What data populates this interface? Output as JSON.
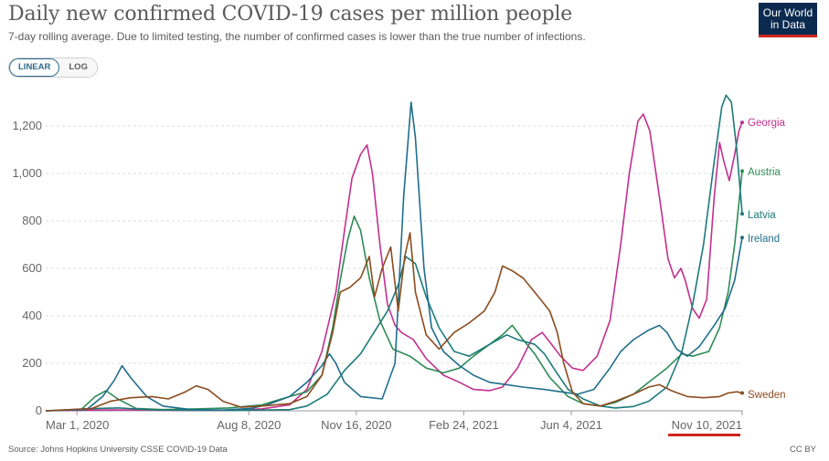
{
  "header": {
    "title": "Daily new confirmed COVID-19 cases per million people",
    "subtitle": "7-day rolling average. Due to limited testing, the number of confirmed cases is lower than the true number of infections.",
    "logo_line1": "Our World",
    "logo_line2": "in Data"
  },
  "controls": {
    "linear_label": "LINEAR",
    "log_label": "LOG",
    "active_scale": "linear"
  },
  "footer": {
    "source": "Source: Johns Hopkins University CSSE COVID-19 Data",
    "license": "CC BY"
  },
  "colors": {
    "accent": "#ce261e",
    "logo_bg": "#0b2a4f",
    "toggle_active": "#2c6a8e"
  },
  "chart_data": {
    "type": "line",
    "title": "Daily new confirmed COVID-19 cases per million people",
    "xlabel": "",
    "ylabel": "",
    "x_range": [
      "2020-02-01",
      "2021-11-10"
    ],
    "ylim": [
      0,
      1300
    ],
    "y_ticks": [
      0,
      200,
      400,
      600,
      800,
      1000,
      1200
    ],
    "y_tick_labels": [
      "0",
      "200",
      "400",
      "600",
      "800",
      "1,000",
      "1,200"
    ],
    "x_ticks": [
      "2020-03-01",
      "2020-08-08",
      "2020-11-16",
      "2021-02-24",
      "2021-06-04",
      "2021-11-10"
    ],
    "x_tick_labels": [
      "Mar 1, 2020",
      "Aug 8, 2020",
      "Nov 16, 2020",
      "Feb 24, 2021",
      "Jun 4, 2021",
      "Nov 10, 2021"
    ],
    "grid": "horizontal dashed",
    "legend": "right, labels at line ends",
    "series": [
      {
        "name": "Georgia",
        "color": "#c2308e",
        "points": [
          [
            "2020-02-01",
            0
          ],
          [
            "2020-03-20",
            3
          ],
          [
            "2020-04-20",
            4
          ],
          [
            "2020-06-01",
            2
          ],
          [
            "2020-07-15",
            2
          ],
          [
            "2020-08-20",
            8
          ],
          [
            "2020-09-15",
            25
          ],
          [
            "2020-10-01",
            90
          ],
          [
            "2020-10-15",
            250
          ],
          [
            "2020-10-28",
            500
          ],
          [
            "2020-11-05",
            760
          ],
          [
            "2020-11-12",
            980
          ],
          [
            "2020-11-20",
            1080
          ],
          [
            "2020-11-26",
            1120
          ],
          [
            "2020-12-01",
            1000
          ],
          [
            "2020-12-08",
            700
          ],
          [
            "2020-12-15",
            450
          ],
          [
            "2020-12-22",
            360
          ],
          [
            "2020-12-28",
            330
          ],
          [
            "2021-01-08",
            300
          ],
          [
            "2021-01-20",
            220
          ],
          [
            "2021-02-05",
            150
          ],
          [
            "2021-02-20",
            120
          ],
          [
            "2021-03-05",
            90
          ],
          [
            "2021-03-20",
            85
          ],
          [
            "2021-04-01",
            100
          ],
          [
            "2021-04-15",
            180
          ],
          [
            "2021-04-28",
            300
          ],
          [
            "2021-05-08",
            330
          ],
          [
            "2021-05-15",
            290
          ],
          [
            "2021-05-25",
            230
          ],
          [
            "2021-06-05",
            180
          ],
          [
            "2021-06-15",
            170
          ],
          [
            "2021-06-28",
            230
          ],
          [
            "2021-07-10",
            380
          ],
          [
            "2021-07-20",
            700
          ],
          [
            "2021-07-28",
            1000
          ],
          [
            "2021-08-05",
            1220
          ],
          [
            "2021-08-10",
            1250
          ],
          [
            "2021-08-16",
            1180
          ],
          [
            "2021-08-25",
            900
          ],
          [
            "2021-09-02",
            640
          ],
          [
            "2021-09-08",
            560
          ],
          [
            "2021-09-14",
            600
          ],
          [
            "2021-09-18",
            550
          ],
          [
            "2021-09-25",
            430
          ],
          [
            "2021-10-01",
            390
          ],
          [
            "2021-10-08",
            470
          ],
          [
            "2021-10-15",
            900
          ],
          [
            "2021-10-20",
            1130
          ],
          [
            "2021-10-24",
            1050
          ],
          [
            "2021-10-29",
            970
          ],
          [
            "2021-11-03",
            1080
          ],
          [
            "2021-11-07",
            1180
          ],
          [
            "2021-11-10",
            1215
          ]
        ]
      },
      {
        "name": "Austria",
        "color": "#2e8b57",
        "points": [
          [
            "2020-02-01",
            0
          ],
          [
            "2020-03-05",
            5
          ],
          [
            "2020-03-18",
            60
          ],
          [
            "2020-03-28",
            85
          ],
          [
            "2020-04-08",
            50
          ],
          [
            "2020-04-25",
            10
          ],
          [
            "2020-05-20",
            5
          ],
          [
            "2020-06-20",
            8
          ],
          [
            "2020-07-20",
            12
          ],
          [
            "2020-08-20",
            25
          ],
          [
            "2020-09-15",
            60
          ],
          [
            "2020-10-01",
            80
          ],
          [
            "2020-10-15",
            150
          ],
          [
            "2020-10-25",
            350
          ],
          [
            "2020-11-01",
            550
          ],
          [
            "2020-11-08",
            720
          ],
          [
            "2020-11-14",
            820
          ],
          [
            "2020-11-20",
            760
          ],
          [
            "2020-11-28",
            560
          ],
          [
            "2020-12-08",
            380
          ],
          [
            "2020-12-20",
            260
          ],
          [
            "2021-01-05",
            230
          ],
          [
            "2021-01-20",
            180
          ],
          [
            "2021-02-05",
            160
          ],
          [
            "2021-02-20",
            180
          ],
          [
            "2021-03-05",
            230
          ],
          [
            "2021-03-20",
            280
          ],
          [
            "2021-04-01",
            320
          ],
          [
            "2021-04-10",
            360
          ],
          [
            "2021-04-20",
            300
          ],
          [
            "2021-05-01",
            240
          ],
          [
            "2021-05-15",
            140
          ],
          [
            "2021-06-01",
            60
          ],
          [
            "2021-06-15",
            30
          ],
          [
            "2021-07-01",
            20
          ],
          [
            "2021-07-15",
            35
          ],
          [
            "2021-08-01",
            70
          ],
          [
            "2021-08-15",
            120
          ],
          [
            "2021-09-01",
            180
          ],
          [
            "2021-09-15",
            240
          ],
          [
            "2021-09-25",
            230
          ],
          [
            "2021-10-10",
            250
          ],
          [
            "2021-10-20",
            350
          ],
          [
            "2021-10-28",
            500
          ],
          [
            "2021-11-03",
            700
          ],
          [
            "2021-11-10",
            1010
          ]
        ]
      },
      {
        "name": "Latvia",
        "color": "#1d7a7a",
        "points": [
          [
            "2020-02-01",
            0
          ],
          [
            "2020-03-20",
            10
          ],
          [
            "2020-04-10",
            12
          ],
          [
            "2020-05-10",
            4
          ],
          [
            "2020-06-15",
            2
          ],
          [
            "2020-07-20",
            2
          ],
          [
            "2020-08-20",
            3
          ],
          [
            "2020-09-15",
            5
          ],
          [
            "2020-10-01",
            20
          ],
          [
            "2020-10-20",
            70
          ],
          [
            "2020-11-05",
            170
          ],
          [
            "2020-11-20",
            240
          ],
          [
            "2020-12-01",
            320
          ],
          [
            "2020-12-15",
            420
          ],
          [
            "2020-12-25",
            530
          ],
          [
            "2021-01-01",
            650
          ],
          [
            "2021-01-10",
            620
          ],
          [
            "2021-01-20",
            480
          ],
          [
            "2021-02-01",
            350
          ],
          [
            "2021-02-15",
            250
          ],
          [
            "2021-03-01",
            230
          ],
          [
            "2021-03-20",
            280
          ],
          [
            "2021-04-05",
            320
          ],
          [
            "2021-04-15",
            300
          ],
          [
            "2021-05-01",
            280
          ],
          [
            "2021-05-10",
            240
          ],
          [
            "2021-05-20",
            170
          ],
          [
            "2021-06-01",
            90
          ],
          [
            "2021-06-15",
            50
          ],
          [
            "2021-07-01",
            20
          ],
          [
            "2021-07-15",
            12
          ],
          [
            "2021-08-01",
            18
          ],
          [
            "2021-08-15",
            40
          ],
          [
            "2021-09-01",
            100
          ],
          [
            "2021-09-15",
            250
          ],
          [
            "2021-09-25",
            450
          ],
          [
            "2021-10-05",
            700
          ],
          [
            "2021-10-15",
            1050
          ],
          [
            "2021-10-22",
            1280
          ],
          [
            "2021-10-26",
            1330
          ],
          [
            "2021-10-31",
            1300
          ],
          [
            "2021-11-05",
            1100
          ],
          [
            "2021-11-10",
            830
          ]
        ]
      },
      {
        "name": "Ireland",
        "color": "#1f6e8c",
        "points": [
          [
            "2020-02-01",
            0
          ],
          [
            "2020-03-10",
            5
          ],
          [
            "2020-03-25",
            60
          ],
          [
            "2020-04-05",
            130
          ],
          [
            "2020-04-12",
            190
          ],
          [
            "2020-04-20",
            140
          ],
          [
            "2020-05-05",
            60
          ],
          [
            "2020-05-20",
            20
          ],
          [
            "2020-06-15",
            5
          ],
          [
            "2020-07-15",
            3
          ],
          [
            "2020-08-10",
            10
          ],
          [
            "2020-08-25",
            25
          ],
          [
            "2020-09-15",
            60
          ],
          [
            "2020-10-01",
            120
          ],
          [
            "2020-10-15",
            190
          ],
          [
            "2020-10-22",
            240
          ],
          [
            "2020-10-28",
            200
          ],
          [
            "2020-11-05",
            120
          ],
          [
            "2020-11-20",
            60
          ],
          [
            "2020-12-10",
            50
          ],
          [
            "2020-12-22",
            200
          ],
          [
            "2020-12-30",
            900
          ],
          [
            "2021-01-06",
            1300
          ],
          [
            "2021-01-10",
            1150
          ],
          [
            "2021-01-18",
            600
          ],
          [
            "2021-01-25",
            350
          ],
          [
            "2021-02-05",
            250
          ],
          [
            "2021-02-20",
            190
          ],
          [
            "2021-03-05",
            150
          ],
          [
            "2021-03-20",
            120
          ],
          [
            "2021-04-05",
            110
          ],
          [
            "2021-04-20",
            100
          ],
          [
            "2021-05-10",
            90
          ],
          [
            "2021-05-25",
            80
          ],
          [
            "2021-06-10",
            70
          ],
          [
            "2021-06-25",
            90
          ],
          [
            "2021-07-10",
            180
          ],
          [
            "2021-07-20",
            250
          ],
          [
            "2021-08-01",
            300
          ],
          [
            "2021-08-15",
            340
          ],
          [
            "2021-08-25",
            360
          ],
          [
            "2021-09-01",
            330
          ],
          [
            "2021-09-10",
            260
          ],
          [
            "2021-09-20",
            230
          ],
          [
            "2021-10-01",
            270
          ],
          [
            "2021-10-15",
            360
          ],
          [
            "2021-10-25",
            430
          ],
          [
            "2021-11-03",
            550
          ],
          [
            "2021-11-10",
            730
          ]
        ]
      },
      {
        "name": "Sweden",
        "color": "#8b4c1f",
        "points": [
          [
            "2020-02-01",
            0
          ],
          [
            "2020-03-15",
            10
          ],
          [
            "2020-04-01",
            40
          ],
          [
            "2020-04-20",
            55
          ],
          [
            "2020-05-10",
            60
          ],
          [
            "2020-05-25",
            50
          ],
          [
            "2020-06-10",
            80
          ],
          [
            "2020-06-20",
            105
          ],
          [
            "2020-07-01",
            90
          ],
          [
            "2020-07-15",
            40
          ],
          [
            "2020-08-01",
            15
          ],
          [
            "2020-08-20",
            20
          ],
          [
            "2020-09-15",
            30
          ],
          [
            "2020-10-01",
            60
          ],
          [
            "2020-10-15",
            150
          ],
          [
            "2020-10-25",
            330
          ],
          [
            "2020-11-01",
            500
          ],
          [
            "2020-11-10",
            520
          ],
          [
            "2020-11-20",
            560
          ],
          [
            "2020-11-28",
            650
          ],
          [
            "2020-12-03",
            480
          ],
          [
            "2020-12-10",
            600
          ],
          [
            "2020-12-18",
            690
          ],
          [
            "2020-12-25",
            420
          ],
          [
            "2020-12-31",
            650
          ],
          [
            "2021-01-05",
            750
          ],
          [
            "2021-01-10",
            500
          ],
          [
            "2021-01-20",
            320
          ],
          [
            "2021-02-01",
            260
          ],
          [
            "2021-02-15",
            330
          ],
          [
            "2021-03-01",
            370
          ],
          [
            "2021-03-15",
            420
          ],
          [
            "2021-03-25",
            500
          ],
          [
            "2021-04-01",
            610
          ],
          [
            "2021-04-10",
            590
          ],
          [
            "2021-04-20",
            560
          ],
          [
            "2021-05-01",
            500
          ],
          [
            "2021-05-15",
            420
          ],
          [
            "2021-05-22",
            330
          ],
          [
            "2021-05-28",
            200
          ],
          [
            "2021-06-05",
            80
          ],
          [
            "2021-06-15",
            30
          ],
          [
            "2021-07-01",
            20
          ],
          [
            "2021-07-15",
            40
          ],
          [
            "2021-08-01",
            70
          ],
          [
            "2021-08-15",
            100
          ],
          [
            "2021-08-25",
            110
          ],
          [
            "2021-09-05",
            85
          ],
          [
            "2021-09-20",
            60
          ],
          [
            "2021-10-05",
            55
          ],
          [
            "2021-10-20",
            60
          ],
          [
            "2021-10-28",
            75
          ],
          [
            "2021-11-05",
            80
          ],
          [
            "2021-11-10",
            75
          ]
        ]
      }
    ]
  }
}
